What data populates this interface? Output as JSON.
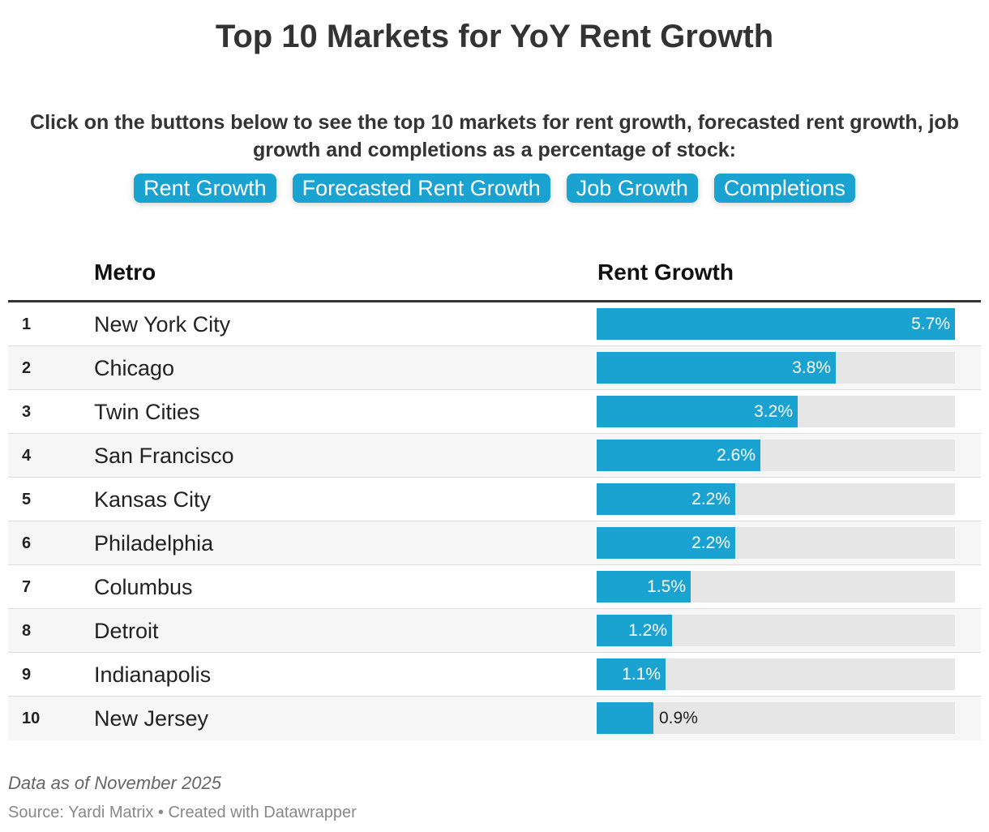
{
  "title": "Top 10 Markets for YoY Rent Growth",
  "intro": "Click on the buttons below to see the top 10 markets for rent growth, forecasted rent growth, job growth and completions as a percentage of stock:",
  "buttons": [
    "Rent Growth",
    "Forecasted Rent Growth",
    "Job Growth",
    "Completions"
  ],
  "colors": {
    "bar": "#1aa3d0",
    "track": "#e6e6e6",
    "button": "#1aa3d0"
  },
  "chart_data": {
    "type": "bar",
    "orientation": "horizontal",
    "title": "Top 10 Markets for YoY Rent Growth",
    "columns": [
      "Metro",
      "Rent Growth"
    ],
    "max": 5.7,
    "rows": [
      {
        "rank": "1",
        "metro": "New York City",
        "value": 5.7,
        "label": "5.7%"
      },
      {
        "rank": "2",
        "metro": "Chicago",
        "value": 3.8,
        "label": "3.8%"
      },
      {
        "rank": "3",
        "metro": "Twin Cities",
        "value": 3.2,
        "label": "3.2%"
      },
      {
        "rank": "4",
        "metro": "San Francisco",
        "value": 2.6,
        "label": "2.6%"
      },
      {
        "rank": "5",
        "metro": "Kansas City",
        "value": 2.2,
        "label": "2.2%"
      },
      {
        "rank": "6",
        "metro": "Philadelphia",
        "value": 2.2,
        "label": "2.2%"
      },
      {
        "rank": "7",
        "metro": "Columbus",
        "value": 1.5,
        "label": "1.5%"
      },
      {
        "rank": "8",
        "metro": "Detroit",
        "value": 1.2,
        "label": "1.2%"
      },
      {
        "rank": "9",
        "metro": "Indianapolis",
        "value": 1.1,
        "label": "1.1%"
      },
      {
        "rank": "10",
        "metro": "New Jersey",
        "value": 0.9,
        "label": "0.9%"
      }
    ]
  },
  "footer": {
    "note": "Data as of November 2025",
    "source": "Source: Yardi Matrix • Created with Datawrapper"
  }
}
